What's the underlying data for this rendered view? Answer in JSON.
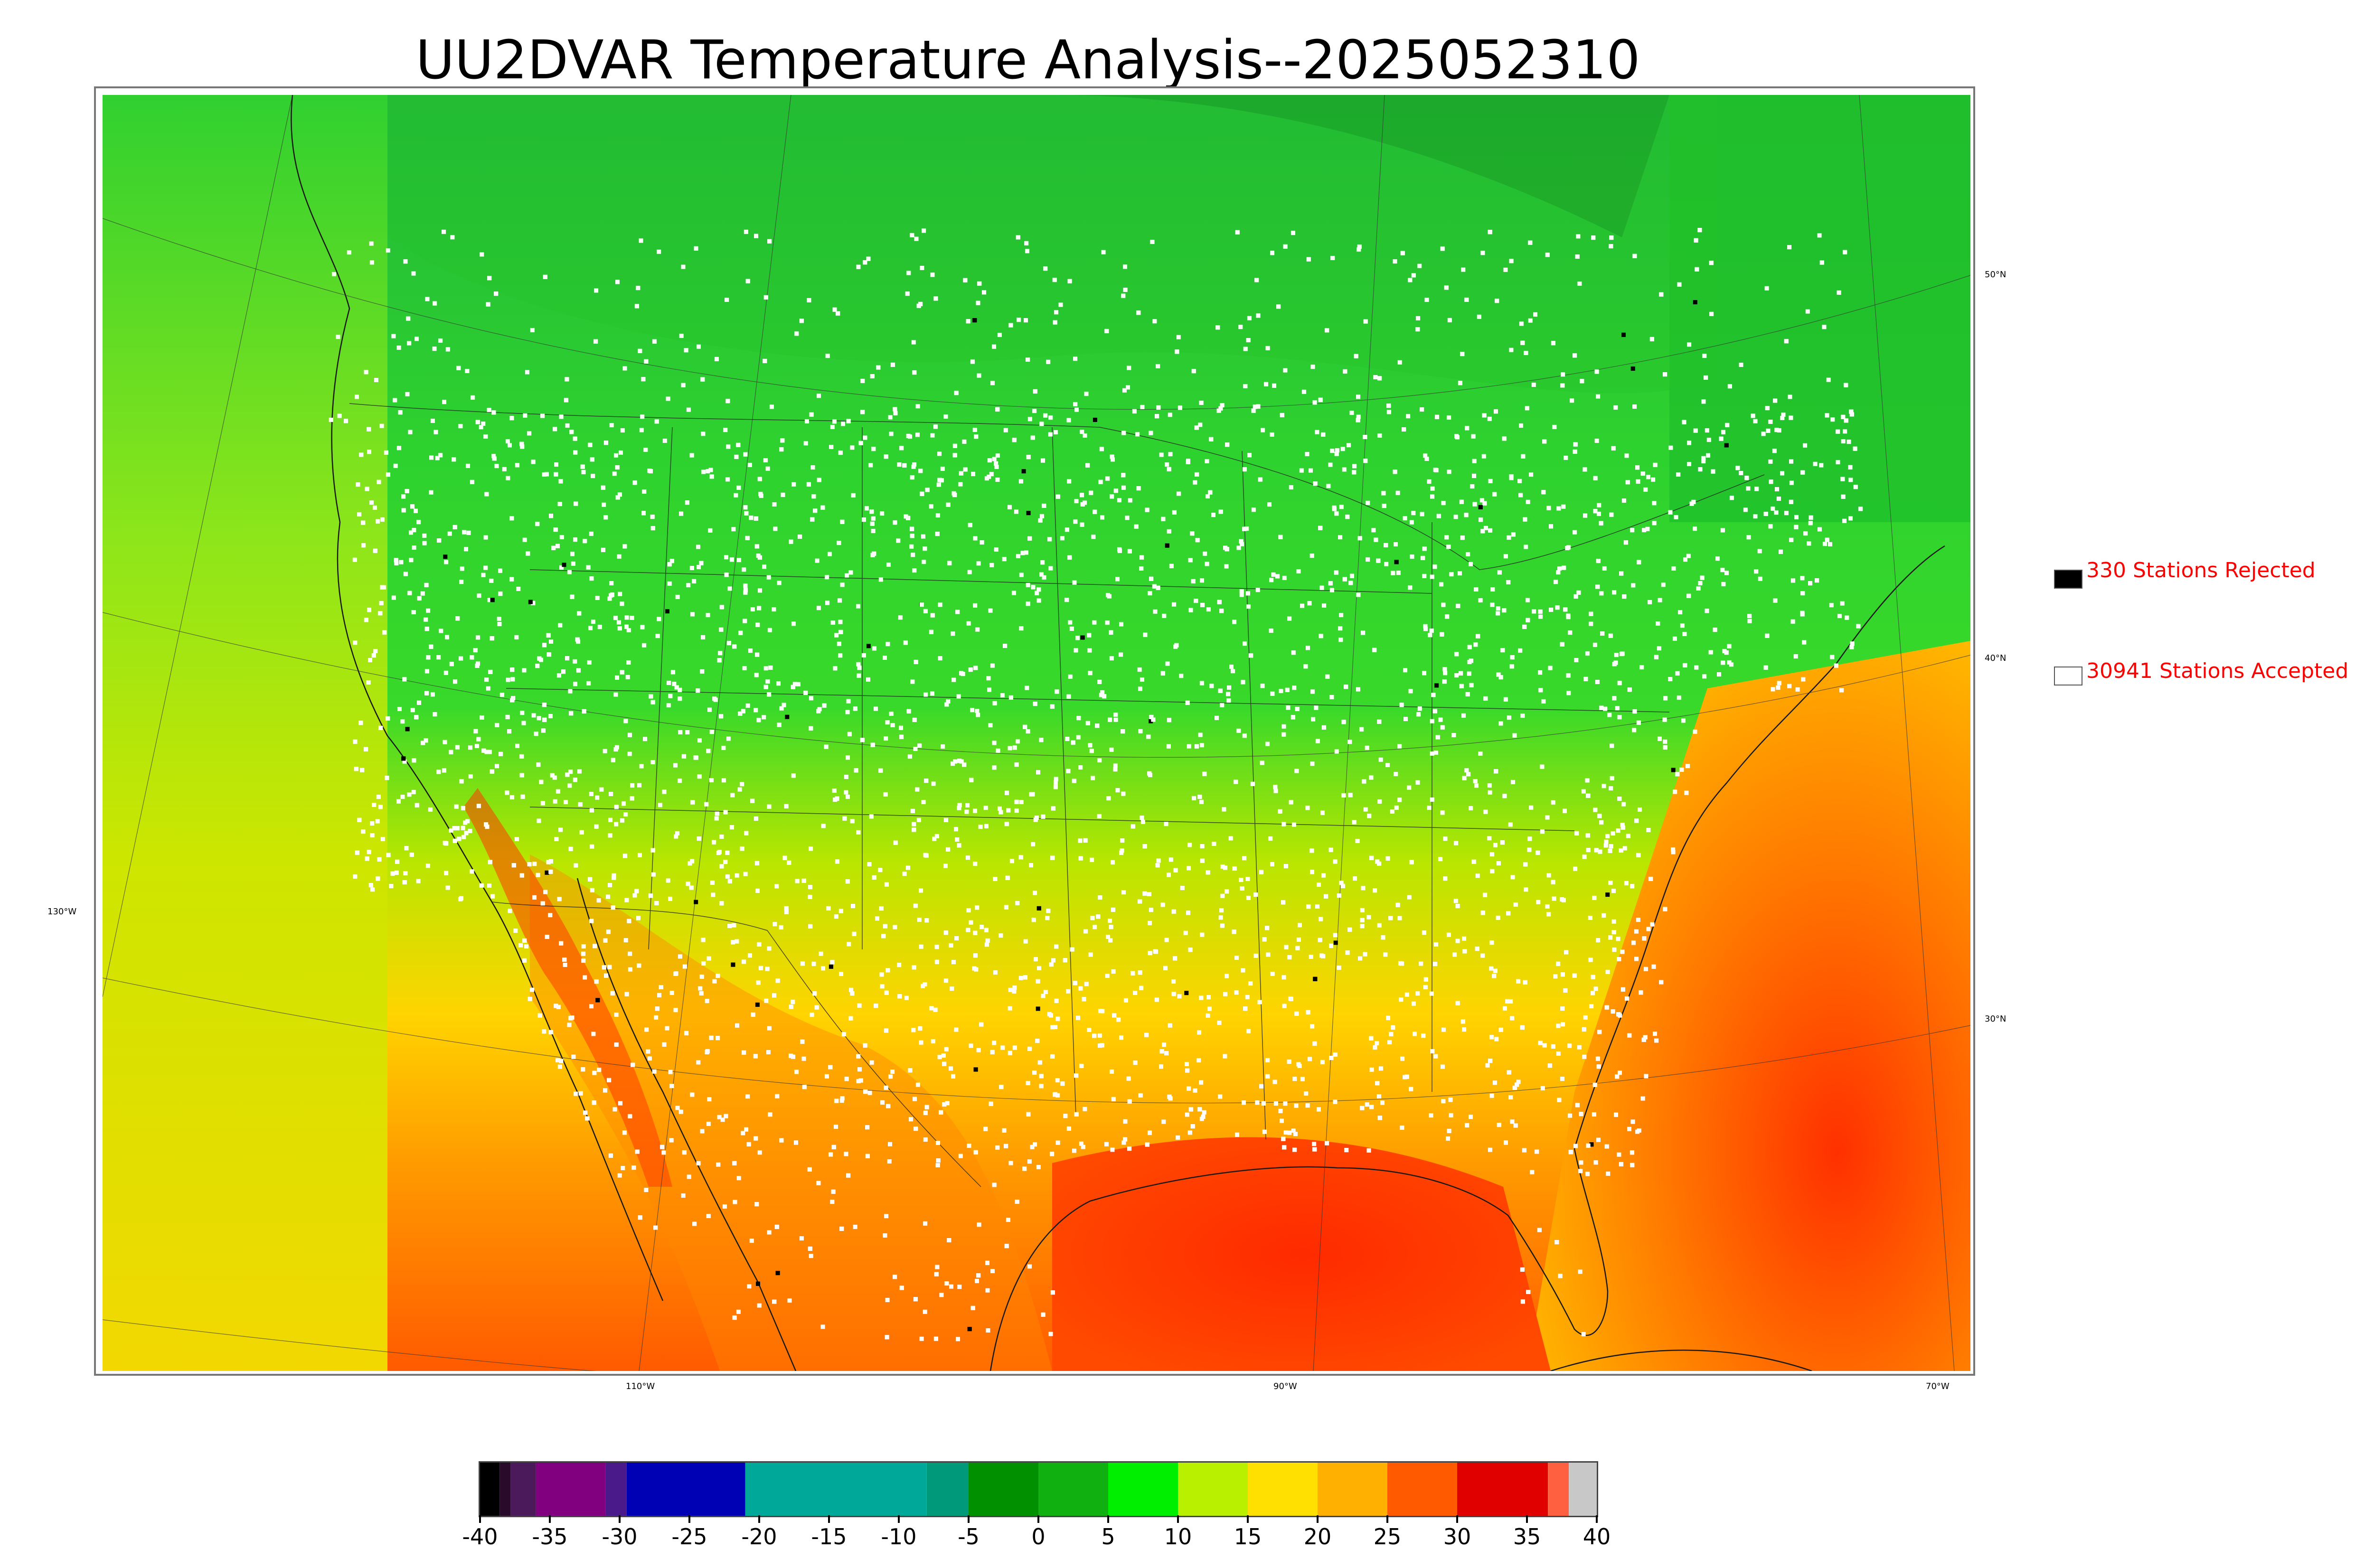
{
  "title": "UU2DVAR Temperature Analysis--2025052310",
  "map": {
    "lon_labels": [
      "130°W",
      "110°W",
      "90°W",
      "70°W"
    ],
    "lat_labels": [
      "50°N",
      "40°N",
      "30°N"
    ]
  },
  "legend": {
    "rejected": {
      "count": 330,
      "label": "330 Stations Rejected",
      "color": "#000000"
    },
    "accepted": {
      "count": 30941,
      "label": "30941 Stations Accepted",
      "color": "#ffffff"
    },
    "text_color": "#ff0000"
  },
  "colorbar": {
    "min": -40,
    "max": 40,
    "tick_labels": [
      "-40",
      "-35",
      "-30",
      "-25",
      "-20",
      "-15",
      "-10",
      "-5",
      "0",
      "5",
      "10",
      "15",
      "20",
      "25",
      "30",
      "35",
      "40"
    ],
    "segments": [
      {
        "from": -40,
        "to": -38.6,
        "color": "#000000"
      },
      {
        "from": -38.6,
        "to": -37.8,
        "color": "#2a0a2a"
      },
      {
        "from": -37.8,
        "to": -36,
        "color": "#4b1a5a"
      },
      {
        "from": -36,
        "to": -31,
        "color": "#800080"
      },
      {
        "from": -31,
        "to": -29.5,
        "color": "#4b1a8a"
      },
      {
        "from": -29.5,
        "to": -21,
        "color": "#0000b4"
      },
      {
        "from": -21,
        "to": -8,
        "color": "#00a89a"
      },
      {
        "from": -8,
        "to": -5,
        "color": "#009a7a"
      },
      {
        "from": -5,
        "to": 0,
        "color": "#009000"
      },
      {
        "from": 0,
        "to": 5,
        "color": "#10b010"
      },
      {
        "from": 5,
        "to": 10,
        "color": "#00ee00"
      },
      {
        "from": 10,
        "to": 15,
        "color": "#b8f000"
      },
      {
        "from": 15,
        "to": 20,
        "color": "#ffe000"
      },
      {
        "from": 20,
        "to": 25,
        "color": "#ffb000"
      },
      {
        "from": 25,
        "to": 30,
        "color": "#ff5a00"
      },
      {
        "from": 30,
        "to": 36.5,
        "color": "#e00000"
      },
      {
        "from": 36.5,
        "to": 38,
        "color": "#ff6040"
      },
      {
        "from": 38,
        "to": 40,
        "color": "#c8c8c8"
      }
    ]
  }
}
